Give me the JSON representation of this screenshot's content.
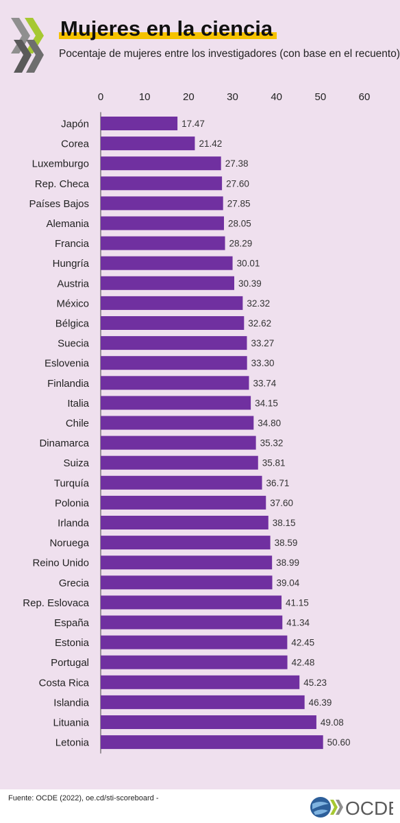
{
  "header": {
    "title": "Mujeres en la ciencia",
    "subtitle": "Pocentaje de mujeres entre los investigadores (con base en el recuento)"
  },
  "footer": {
    "source": "Fuente: OCDE (2022), oe.cd/sti-scoreboard -",
    "logo_text": "OCDE"
  },
  "colors": {
    "background": "#efe0ee",
    "bar": "#7030a0",
    "title_highlight": "#f5c200",
    "logo_chevron": "#5a5a5a",
    "logo_chevron_accent": "#a6c832"
  },
  "chart_data": {
    "type": "bar",
    "orientation": "horizontal",
    "title": "Mujeres en la ciencia",
    "subtitle": "Pocentaje de mujeres entre los investigadores (con base en el recuento)",
    "xlim": [
      0,
      60
    ],
    "xticks": [
      0,
      10,
      20,
      30,
      40,
      50,
      60
    ],
    "axis_position": "top",
    "grid": false,
    "categories": [
      "Japón",
      "Corea",
      "Luxemburgo",
      "Rep. Checa",
      "Países Bajos",
      "Alemania",
      "Francia",
      "Hungría",
      "Austria",
      "México",
      "Bélgica",
      "Suecia",
      "Eslovenia",
      "Finlandia",
      "Italia",
      "Chile",
      "Dinamarca",
      "Suiza",
      "Turquía",
      "Polonia",
      "Irlanda",
      "Noruega",
      "Reino Unido",
      "Grecia",
      "Rep. Eslovaca",
      "España",
      "Estonia",
      "Portugal",
      "Costa Rica",
      "Islandia",
      "Lituania",
      "Letonia"
    ],
    "values": [
      17.47,
      21.42,
      27.38,
      27.6,
      27.85,
      28.05,
      28.29,
      30.01,
      30.39,
      32.32,
      32.62,
      33.27,
      33.3,
      33.74,
      34.15,
      34.8,
      35.32,
      35.81,
      36.71,
      37.6,
      38.15,
      38.59,
      38.99,
      39.04,
      41.15,
      41.34,
      42.45,
      42.48,
      45.23,
      46.39,
      49.08,
      50.6
    ],
    "value_labels": [
      "17.47",
      "21.42",
      "27.38",
      "27.60",
      "27.85",
      "28.05",
      "28.29",
      "30.01",
      "30.39",
      "32.32",
      "32.62",
      "33.27",
      "33.30",
      "33.74",
      "34.15",
      "34.80",
      "35.32",
      "35.81",
      "36.71",
      "37.60",
      "38.15",
      "38.59",
      "38.99",
      "39.04",
      "41.15",
      "41.34",
      "42.45",
      "42.48",
      "45.23",
      "46.39",
      "49.08",
      "50.60"
    ]
  }
}
